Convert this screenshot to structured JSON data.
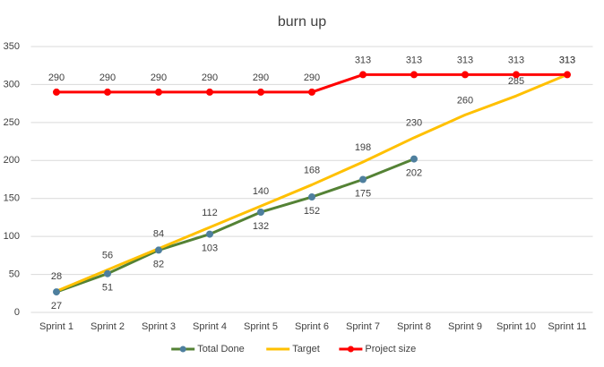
{
  "chart_data": {
    "type": "line",
    "title": "burn up",
    "categories": [
      "Sprint 1",
      "Sprint 2",
      "Sprint 3",
      "Sprint 4",
      "Sprint 5",
      "Sprint 6",
      "Sprint 7",
      "Sprint 8",
      "Sprint 9",
      "Sprint 10",
      "Sprint 11"
    ],
    "series": [
      {
        "name": "Total Done",
        "color": "#548235",
        "marker_color": "#4e7f9e",
        "markers": true,
        "labels": "below",
        "values": [
          27,
          51,
          82,
          103,
          132,
          152,
          175,
          202,
          null,
          null,
          null
        ]
      },
      {
        "name": "Target",
        "color": "#ffc000",
        "markers": false,
        "labels": "above",
        "values": [
          28,
          56,
          84,
          112,
          140,
          168,
          198,
          230,
          260,
          285,
          313
        ]
      },
      {
        "name": "Project size",
        "color": "#ff0000",
        "marker_color": "#ff0000",
        "markers": true,
        "labels": "above",
        "values": [
          290,
          290,
          290,
          290,
          290,
          290,
          313,
          313,
          313,
          313,
          313
        ]
      }
    ],
    "ylim": [
      0,
      350
    ],
    "yticks": [
      0,
      50,
      100,
      150,
      200,
      250,
      300,
      350
    ],
    "grid": true,
    "legend": "bottom"
  }
}
